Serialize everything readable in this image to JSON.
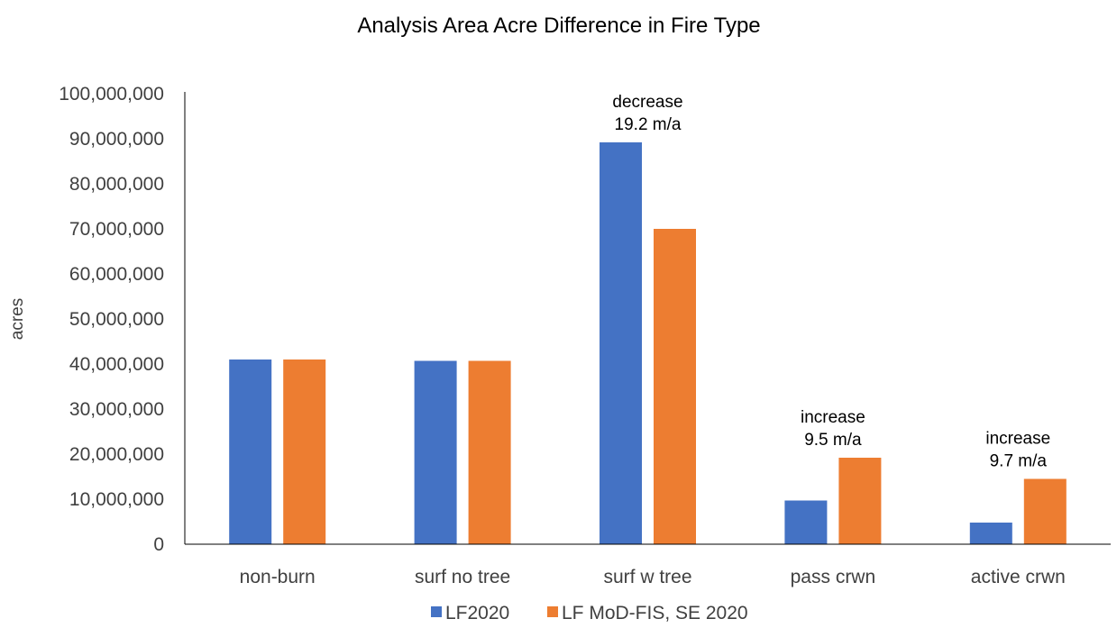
{
  "chart_data": {
    "type": "bar",
    "title": "Analysis Area Acre Difference in Fire Type",
    "xlabel": "",
    "ylabel": "acres",
    "ylim": [
      0,
      100000000
    ],
    "yticks": [
      0,
      10000000,
      20000000,
      30000000,
      40000000,
      50000000,
      60000000,
      70000000,
      80000000,
      90000000,
      100000000
    ],
    "ytick_labels": [
      "0",
      "10,000,000",
      "20,000,000",
      "30,000,000",
      "40,000,000",
      "50,000,000",
      "60,000,000",
      "70,000,000",
      "80,000,000",
      "90,000,000",
      "100,000,000"
    ],
    "grid": false,
    "legend_position": "bottom",
    "categories": [
      "non-burn",
      "surf no tree",
      "surf w tree",
      "pass crwn",
      "active crwn"
    ],
    "series": [
      {
        "name": "LF2020",
        "color": "#4472C4",
        "values": [
          41000000,
          40700000,
          89200000,
          9700000,
          4800000
        ]
      },
      {
        "name": "LF MoD-FIS, SE 2020",
        "color": "#ED7D31",
        "values": [
          41000000,
          40700000,
          70000000,
          19200000,
          14500000
        ]
      }
    ],
    "annotations": [
      {
        "category": "surf w tree",
        "lines": [
          "decrease",
          "19.2 m/a"
        ]
      },
      {
        "category": "pass crwn",
        "lines": [
          "increase",
          "9.5 m/a"
        ]
      },
      {
        "category": "active crwn",
        "lines": [
          "increase",
          "9.7 m/a"
        ]
      }
    ]
  }
}
